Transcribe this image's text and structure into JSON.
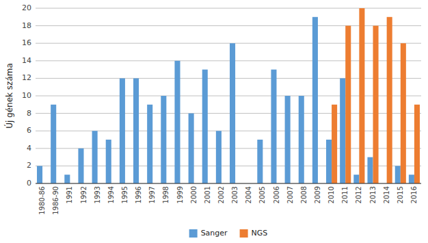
{
  "chart_data": {
    "type": "bar",
    "categories": [
      "1980-86",
      "1986-90",
      "1991",
      "1992",
      "1993",
      "1994",
      "1995",
      "1996",
      "1997",
      "1998",
      "1999",
      "2000",
      "2001",
      "2002",
      "2003",
      "2004",
      "2005",
      "2006",
      "2007",
      "2008",
      "2009",
      "2010",
      "2011",
      "2012",
      "2013",
      "2014",
      "2015",
      "2016"
    ],
    "series": [
      {
        "name": "Sanger",
        "color": "#5b9bd5",
        "values": [
          2,
          9,
          1,
          4,
          6,
          5,
          12,
          12,
          9,
          10,
          14,
          8,
          13,
          6,
          16,
          0,
          5,
          13,
          10,
          10,
          19,
          5,
          12,
          1,
          3,
          0,
          2,
          1
        ]
      },
      {
        "name": "NGS",
        "color": "#ed7d31",
        "values": [
          0,
          0,
          0,
          0,
          0,
          0,
          0,
          0,
          0,
          0,
          0,
          0,
          0,
          0,
          0,
          0,
          0,
          0,
          0,
          0,
          0,
          9,
          18,
          20,
          18,
          19,
          16,
          9
        ]
      }
    ],
    "ylabel": "Új gének száma",
    "ylim": [
      0,
      20
    ],
    "yticks": [
      0,
      2,
      4,
      6,
      8,
      10,
      12,
      14,
      16,
      18,
      20
    ],
    "grid": true,
    "legend": "bottom"
  }
}
